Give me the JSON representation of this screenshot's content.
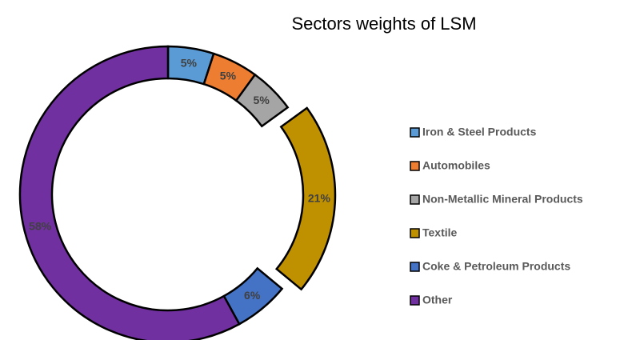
{
  "chart_data": {
    "type": "donut",
    "title": "Sectors weights of LSM",
    "categories": [
      "Iron & Steel Products",
      "Automobiles",
      "Non-Metallic Mineral Products",
      "Textile",
      "Coke & Petroleum Products",
      "Other"
    ],
    "values": [
      5,
      5,
      5,
      21,
      6,
      58
    ],
    "value_labels": [
      "5%",
      "5%",
      "5%",
      "21%",
      "6%",
      "58%"
    ],
    "colors": [
      "#5b9bd5",
      "#ed7d31",
      "#a5a5a5",
      "#bf9000",
      "#4472c4",
      "#7030a0"
    ],
    "exploded": [
      false,
      false,
      false,
      true,
      false,
      false
    ],
    "legend": "right"
  }
}
